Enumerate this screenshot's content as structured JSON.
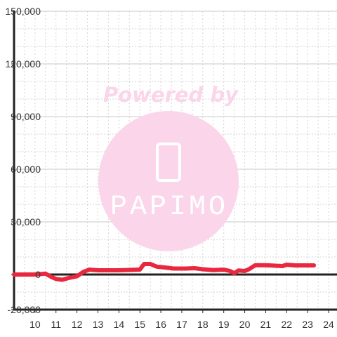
{
  "watermark": {
    "caption": "Powered by",
    "brand": "PAPIMO",
    "color": "#fbd5ea"
  },
  "colors": {
    "series": "#e8283f",
    "axis": "#222222",
    "grid_major": "#c8c8c8",
    "grid_minor": "#d4d4d4",
    "tick_text": "#333333"
  },
  "chart_data": {
    "type": "line",
    "title": "",
    "xlabel": "",
    "ylabel": "",
    "xlim": [
      9.0,
      24.4
    ],
    "ylim": [
      -20000,
      150000
    ],
    "x_ticks": [
      10,
      11,
      12,
      13,
      14,
      15,
      16,
      17,
      18,
      19,
      20,
      21,
      22,
      23,
      24
    ],
    "x_tick_labels": [
      "10",
      "11",
      "12",
      "13",
      "14",
      "15",
      "16",
      "17",
      "18",
      "19",
      "20",
      "21",
      "22",
      "23",
      "24"
    ],
    "y_ticks": [
      150000,
      120000,
      90000,
      60000,
      30000,
      0,
      -20000
    ],
    "y_tick_labels": [
      "150,000",
      "120,000",
      "90,000",
      "60,000",
      "30,000",
      "0",
      "-20,000"
    ],
    "grid": true,
    "series": [
      {
        "values": [
          [
            9.0,
            0
          ],
          [
            10.0,
            0
          ],
          [
            10.5,
            500
          ],
          [
            10.8,
            -1500
          ],
          [
            11.0,
            -2500
          ],
          [
            11.3,
            -3000
          ],
          [
            11.6,
            -2000
          ],
          [
            12.0,
            -1000
          ],
          [
            12.3,
            1500
          ],
          [
            12.6,
            2800
          ],
          [
            13.0,
            2400
          ],
          [
            13.5,
            2400
          ],
          [
            14.0,
            2400
          ],
          [
            14.5,
            2600
          ],
          [
            15.0,
            2800
          ],
          [
            15.2,
            6000
          ],
          [
            15.5,
            6000
          ],
          [
            15.8,
            4500
          ],
          [
            16.2,
            4000
          ],
          [
            16.6,
            3400
          ],
          [
            17.2,
            3400
          ],
          [
            17.6,
            3600
          ],
          [
            18.0,
            3000
          ],
          [
            18.5,
            2500
          ],
          [
            19.0,
            2800
          ],
          [
            19.3,
            2000
          ],
          [
            19.5,
            700
          ],
          [
            19.7,
            2300
          ],
          [
            20.0,
            2000
          ],
          [
            20.2,
            3000
          ],
          [
            20.5,
            5300
          ],
          [
            21.0,
            5300
          ],
          [
            21.5,
            5000
          ],
          [
            21.8,
            4800
          ],
          [
            22.0,
            5600
          ],
          [
            22.4,
            5200
          ],
          [
            23.0,
            5200
          ],
          [
            23.3,
            5200
          ]
        ]
      }
    ]
  }
}
